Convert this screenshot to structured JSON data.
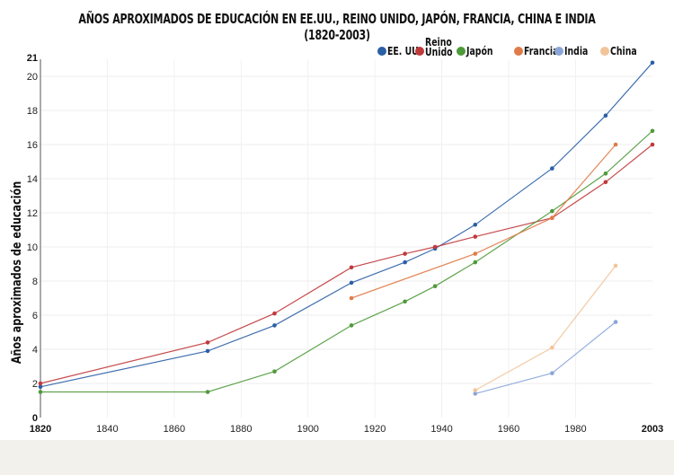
{
  "chart_data": {
    "type": "line",
    "title": "AÑOS APROXIMADOS DE EDUCACIÓN EN EE.UU., REINO UNIDO, JAPÓN, FRANCIA, CHINA E INDIA (1820-2003)",
    "xlabel": "",
    "ylabel": "Años aproximados de educación",
    "xlim": [
      1820,
      2003
    ],
    "ylim": [
      0,
      21
    ],
    "x_ticks": [
      "1820",
      "1840",
      "1860",
      "1880",
      "1900",
      "1920",
      "1940",
      "1960",
      "1980",
      "2003"
    ],
    "x_tick_values": [
      1820,
      1840,
      1860,
      1880,
      1900,
      1920,
      1940,
      1960,
      1980,
      2003
    ],
    "y_ticks": [
      "0",
      "2",
      "4",
      "6",
      "8",
      "10",
      "12",
      "14",
      "16",
      "18",
      "20",
      "21"
    ],
    "y_tick_values": [
      0,
      2,
      4,
      6,
      8,
      10,
      12,
      14,
      16,
      18,
      20,
      21
    ],
    "grid": true,
    "legend_position": "top-right",
    "series": [
      {
        "name": "EE. UU.",
        "color": "#2b5fa6",
        "x": [
          1820,
          1870,
          1890,
          1913,
          1929,
          1938,
          1950,
          1973,
          1989,
          2003
        ],
        "y": [
          1.8,
          3.9,
          5.4,
          7.9,
          9.1,
          9.9,
          11.3,
          14.6,
          17.7,
          20.8
        ]
      },
      {
        "name": "Reino Unido",
        "color": "#c0393b",
        "x": [
          1820,
          1870,
          1890,
          1913,
          1929,
          1938,
          1950,
          1973,
          1989,
          2003
        ],
        "y": [
          2.0,
          4.4,
          6.1,
          8.8,
          9.6,
          10.0,
          10.6,
          11.7,
          13.8,
          16.0
        ]
      },
      {
        "name": "Japón",
        "color": "#4e9a3a",
        "x": [
          1820,
          1870,
          1890,
          1913,
          1929,
          1938,
          1950,
          1973,
          1989,
          2003
        ],
        "y": [
          1.5,
          1.5,
          2.7,
          5.4,
          6.8,
          7.7,
          9.1,
          12.1,
          14.3,
          16.8
        ]
      },
      {
        "name": "Francia",
        "color": "#e07b48",
        "x": [
          1913,
          1950,
          1973,
          1992
        ],
        "y": [
          7.0,
          9.6,
          11.7,
          16.0
        ]
      },
      {
        "name": "India",
        "color": "#8aa6d8",
        "x": [
          1950,
          1973,
          1992
        ],
        "y": [
          1.4,
          2.6,
          5.6
        ]
      },
      {
        "name": "China",
        "color": "#f2c49a",
        "x": [
          1950,
          1973,
          1992
        ],
        "y": [
          1.6,
          4.1,
          8.9
        ]
      }
    ]
  }
}
